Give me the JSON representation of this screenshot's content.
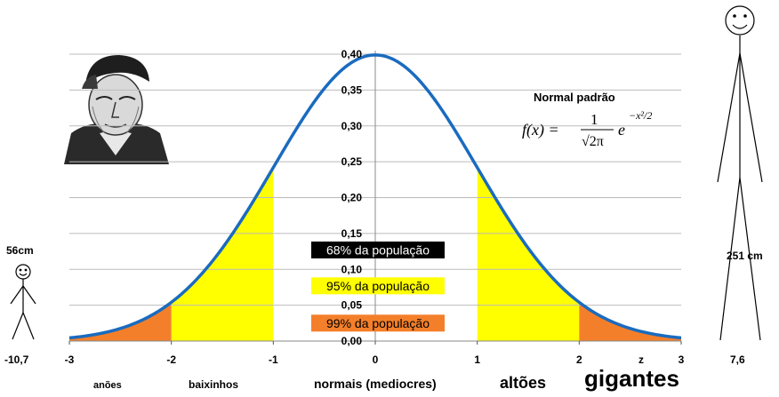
{
  "chart_data": {
    "type": "area",
    "title": "Normal padrão",
    "formula": "f(x) = 1/√(2π) · e^(−x²/2)",
    "formula_parts": {
      "lhs": "f(x) =",
      "numerator": "1",
      "denominator": "√2π",
      "base": "e",
      "exponent": "−x²/2"
    },
    "xlim": [
      -3,
      3
    ],
    "ylim": [
      0,
      0.4
    ],
    "x_ticks": [
      "-3",
      "-2",
      "-1",
      "0",
      "1",
      "2",
      "3"
    ],
    "y_ticks": [
      "0,00",
      "0,05",
      "0,10",
      "0,15",
      "0,20",
      "0,25",
      "0,30",
      "0,35",
      "0,40"
    ],
    "grid": true,
    "series": [
      {
        "function": "standard normal pdf",
        "color": "#1a6bbf"
      }
    ],
    "bands": [
      {
        "from": -1,
        "to": 1,
        "color": "#ffffff",
        "label": "68% da população",
        "label_bg": "#000000",
        "label_fg": "#ffffff"
      },
      {
        "from": -2,
        "to": -1,
        "color": "#ffff00",
        "label": "95% da população",
        "label_bg": "#ffff00",
        "label_fg": "#000000"
      },
      {
        "from": 1,
        "to": 2,
        "color": "#ffff00"
      },
      {
        "from": -3,
        "to": -2,
        "color": "#f47f2a",
        "label": "99% da população",
        "label_bg": "#f47f2a",
        "label_fg": "#000000"
      },
      {
        "from": 2,
        "to": 3,
        "color": "#f47f2a"
      }
    ],
    "axis_letter": "z",
    "category_labels": [
      "anões",
      "baixinhos",
      "normais (mediocres)",
      "altões",
      "gigantes"
    ],
    "extremes": {
      "left": {
        "height": "56cm",
        "z": "-10,7"
      },
      "right": {
        "height": "251 cm",
        "z": "7,6"
      }
    }
  },
  "colors": {
    "curve": "#1a6bbf",
    "title": "#1a6bbf",
    "grid": "#bbbbbb",
    "yellow": "#ffff00",
    "orange": "#f47f2a"
  },
  "portrait": {
    "icon": "engraved-portrait-icon"
  }
}
